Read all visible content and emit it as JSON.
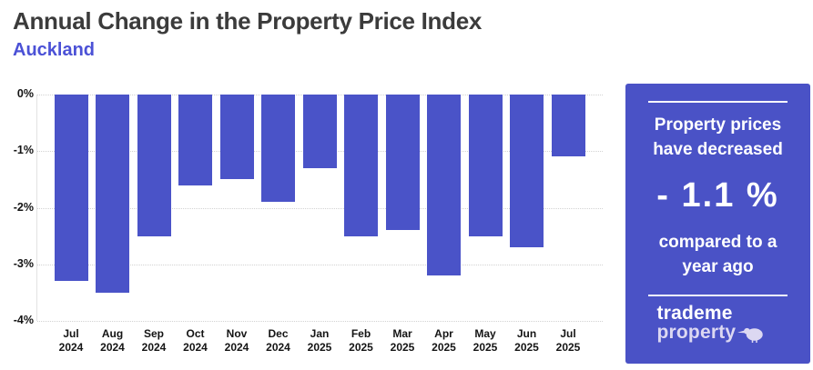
{
  "header": {
    "title": "Annual Change in the Property Price Index",
    "subtitle": "Auckland"
  },
  "chart_data": {
    "type": "bar",
    "title": "Annual Change in the Property Price Index",
    "subtitle": "Auckland",
    "categories": [
      {
        "month": "Jul",
        "year": "2024"
      },
      {
        "month": "Aug",
        "year": "2024"
      },
      {
        "month": "Sep",
        "year": "2024"
      },
      {
        "month": "Oct",
        "year": "2024"
      },
      {
        "month": "Nov",
        "year": "2024"
      },
      {
        "month": "Dec",
        "year": "2024"
      },
      {
        "month": "Jan",
        "year": "2025"
      },
      {
        "month": "Feb",
        "year": "2025"
      },
      {
        "month": "Mar",
        "year": "2025"
      },
      {
        "month": "Apr",
        "year": "2025"
      },
      {
        "month": "May",
        "year": "2025"
      },
      {
        "month": "Jun",
        "year": "2025"
      },
      {
        "month": "Jul",
        "year": "2025"
      }
    ],
    "values": [
      -3.3,
      -3.5,
      -2.5,
      -1.6,
      -1.5,
      -1.9,
      -1.3,
      -2.5,
      -2.4,
      -3.2,
      -2.5,
      -2.7,
      -1.1
    ],
    "ylim": [
      -4,
      0
    ],
    "yticks": [
      "0%",
      "-1%",
      "-2%",
      "-3%",
      "-4%"
    ],
    "xlabel": "",
    "ylabel": "",
    "grid": "horizontal-dotted",
    "legend": "none",
    "bar_color": "#4a53c8"
  },
  "panel": {
    "background_color": "#4a52c6",
    "headline": "Property prices have decreased",
    "value_label": "- 1.1 %",
    "subtext": "compared to a year ago",
    "logo": {
      "line1": "trademe",
      "line2": "property",
      "icon": "kiwi-bird-icon"
    }
  }
}
